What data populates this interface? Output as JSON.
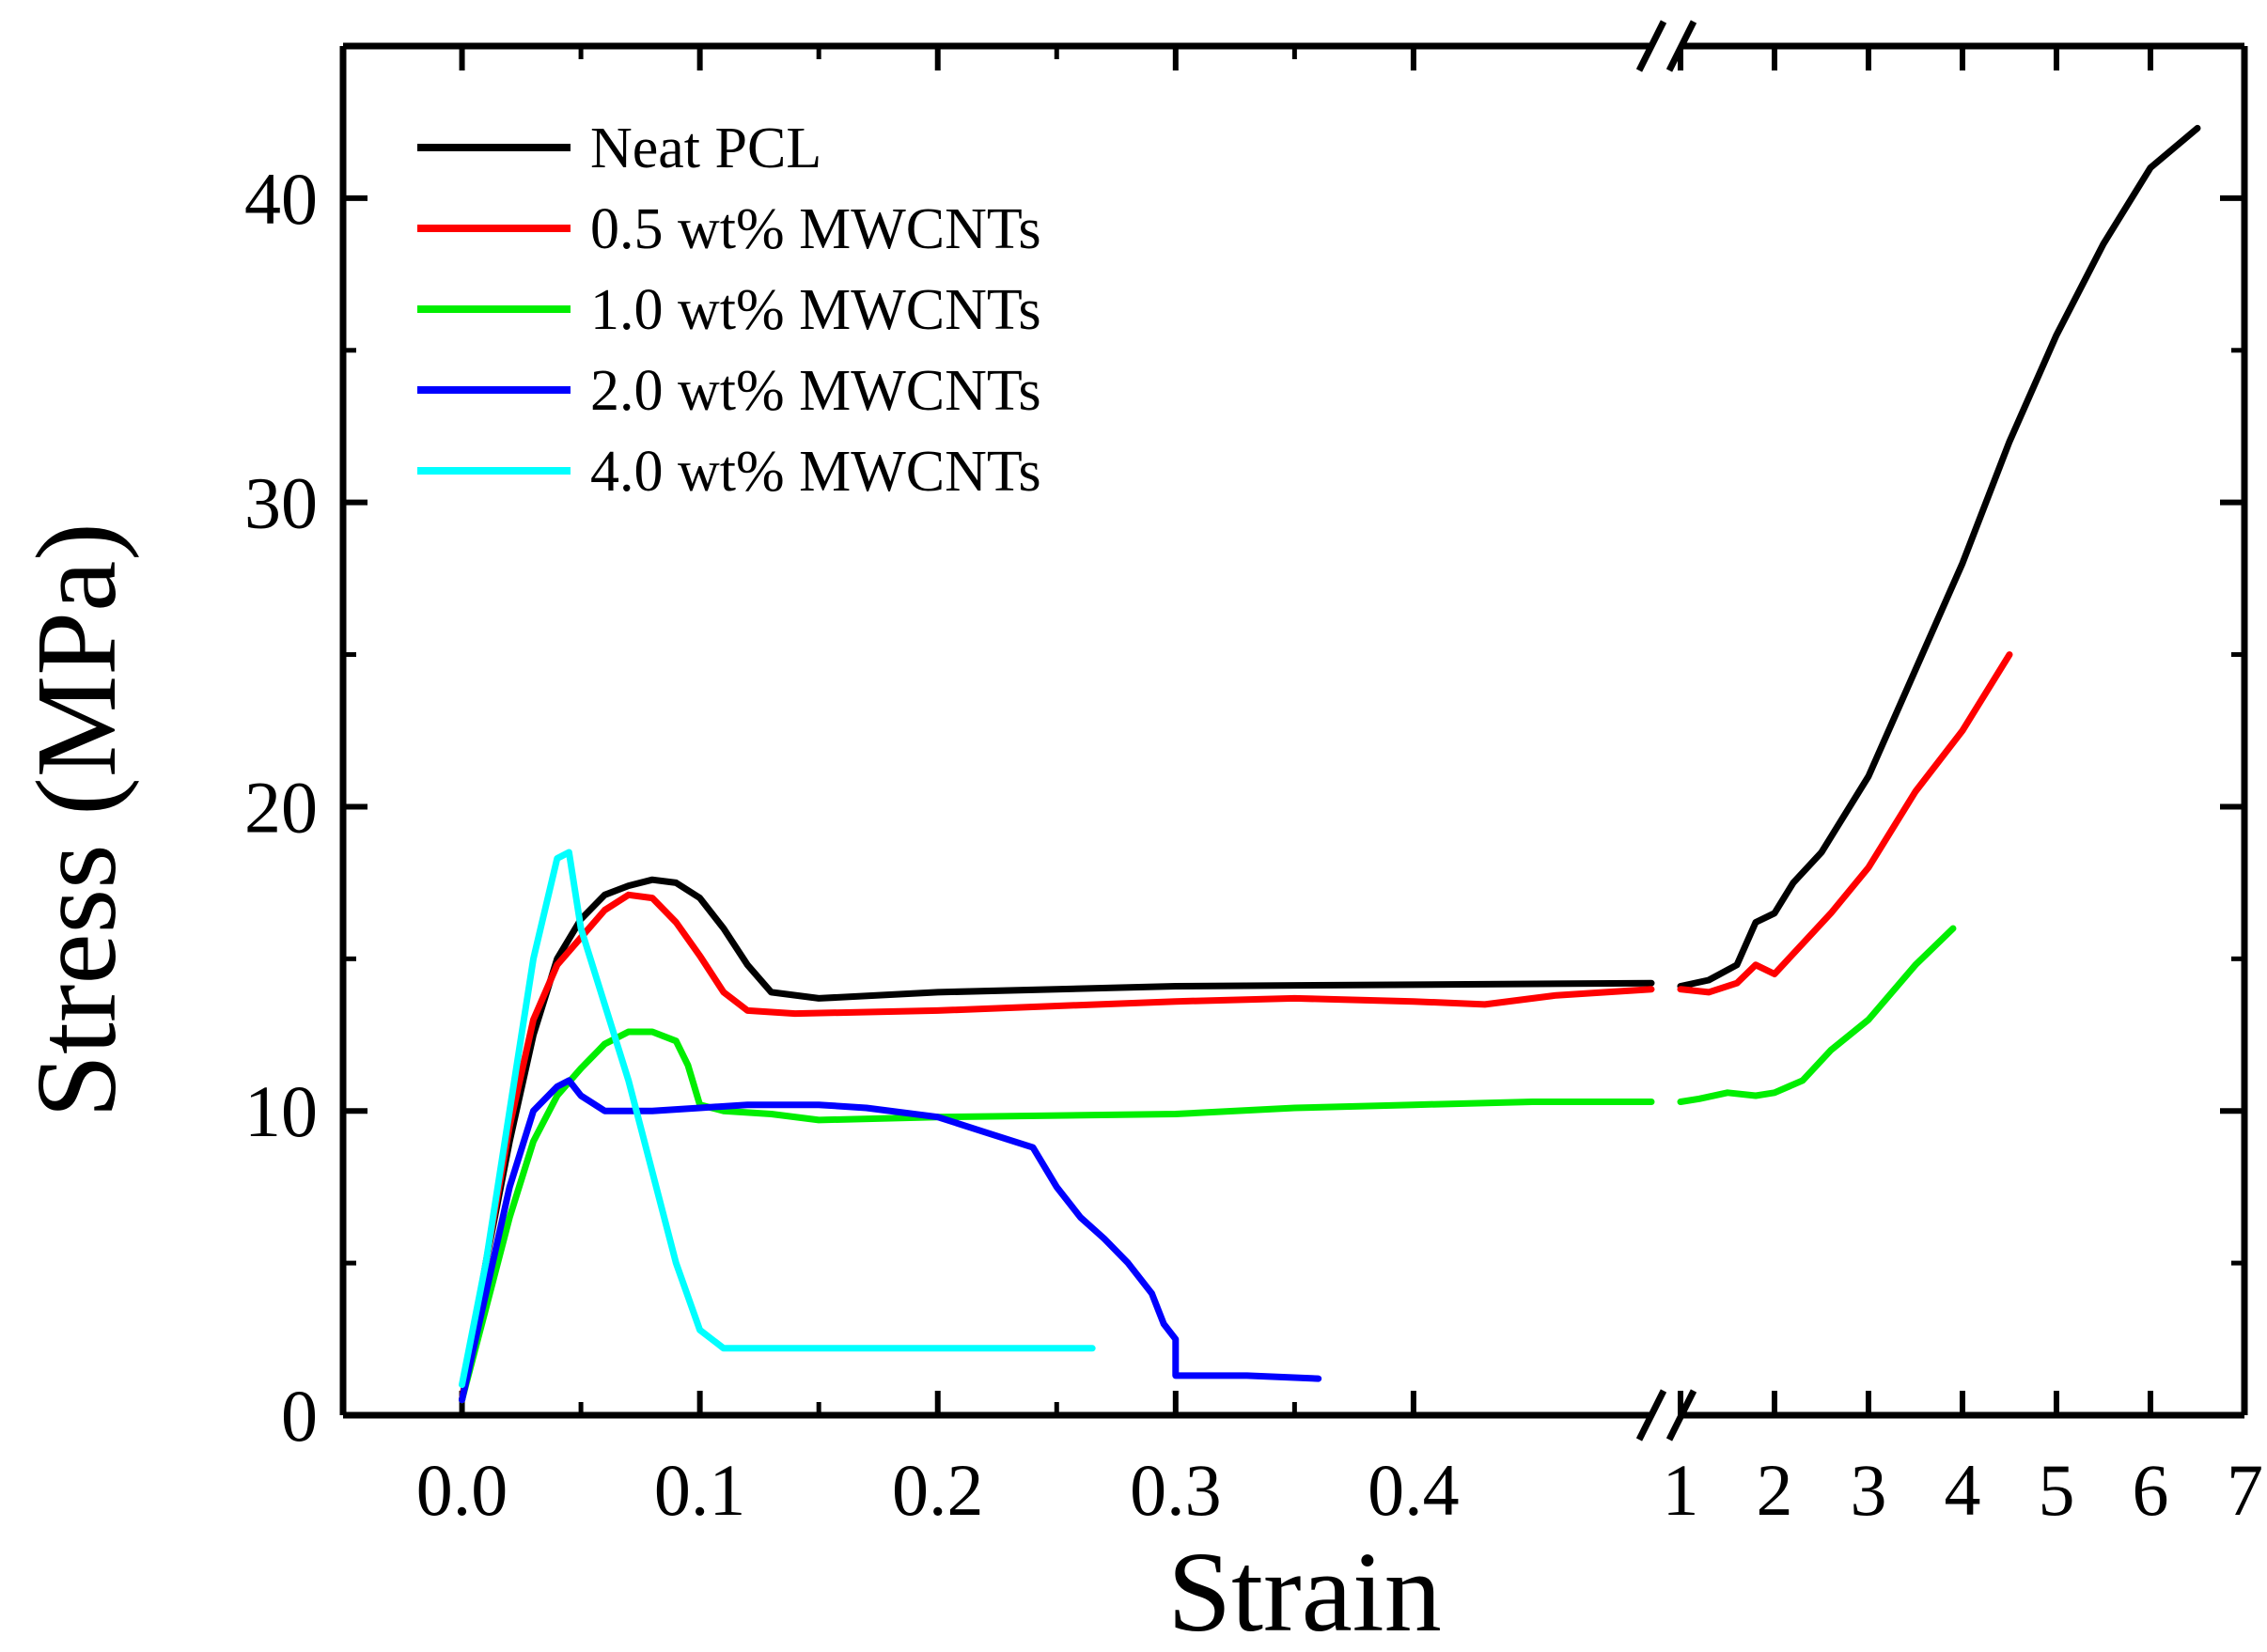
{
  "chart_data": {
    "type": "line",
    "title": "",
    "xlabel": "Strain",
    "ylabel": "Stress (MPa)",
    "axis_break": {
      "between": [
        0.5,
        1.0
      ],
      "marker": "//"
    },
    "x_segments": [
      {
        "range": [
          -0.05,
          0.5
        ],
        "ticks": [
          0.0,
          0.1,
          0.2,
          0.3,
          0.4
        ],
        "tick_labels": [
          "0.0",
          "0.1",
          "0.2",
          "0.3",
          "0.4"
        ]
      },
      {
        "range": [
          1,
          7
        ],
        "ticks": [
          1,
          2,
          3,
          4,
          5,
          6,
          7
        ],
        "tick_labels": [
          "1",
          "2",
          "3",
          "4",
          "5",
          "6",
          "7"
        ]
      }
    ],
    "ylim": [
      0,
      45
    ],
    "yticks": [
      0,
      10,
      20,
      30,
      40
    ],
    "ytick_labels": [
      "0",
      "10",
      "20",
      "30",
      "40"
    ],
    "legend_position": "top-left",
    "series": [
      {
        "name": "Neat PCL",
        "color": "#000000",
        "points": [
          [
            0,
            0.5
          ],
          [
            0.01,
            5
          ],
          [
            0.02,
            9
          ],
          [
            0.03,
            12.5
          ],
          [
            0.04,
            15
          ],
          [
            0.05,
            16.3
          ],
          [
            0.06,
            17.1
          ],
          [
            0.07,
            17.4
          ],
          [
            0.08,
            17.6
          ],
          [
            0.09,
            17.5
          ],
          [
            0.1,
            17
          ],
          [
            0.11,
            16
          ],
          [
            0.12,
            14.8
          ],
          [
            0.13,
            13.9
          ],
          [
            0.15,
            13.7
          ],
          [
            0.2,
            13.9
          ],
          [
            0.3,
            14.1
          ],
          [
            0.5,
            14.2
          ]
        ],
        "points_seg2": [
          [
            1,
            14.1
          ],
          [
            1.3,
            14.3
          ],
          [
            1.6,
            14.8
          ],
          [
            1.8,
            16.2
          ],
          [
            2,
            16.5
          ],
          [
            2.2,
            17.5
          ],
          [
            2.5,
            18.5
          ],
          [
            3,
            21
          ],
          [
            3.5,
            24.5
          ],
          [
            4,
            28
          ],
          [
            4.5,
            32
          ],
          [
            5,
            35.5
          ],
          [
            5.5,
            38.5
          ],
          [
            6,
            41
          ],
          [
            6.5,
            42.3
          ]
        ]
      },
      {
        "name": "0.5 wt% MWCNTs",
        "color": "#ff0000",
        "points": [
          [
            0,
            0.5
          ],
          [
            0.01,
            5
          ],
          [
            0.02,
            9.5
          ],
          [
            0.03,
            13
          ],
          [
            0.04,
            14.8
          ],
          [
            0.05,
            15.7
          ],
          [
            0.06,
            16.6
          ],
          [
            0.07,
            17.1
          ],
          [
            0.08,
            17
          ],
          [
            0.09,
            16.2
          ],
          [
            0.1,
            15.1
          ],
          [
            0.11,
            13.9
          ],
          [
            0.12,
            13.3
          ],
          [
            0.14,
            13.2
          ],
          [
            0.2,
            13.3
          ],
          [
            0.3,
            13.6
          ],
          [
            0.35,
            13.7
          ],
          [
            0.4,
            13.6
          ],
          [
            0.43,
            13.5
          ],
          [
            0.46,
            13.8
          ],
          [
            0.5,
            14
          ]
        ],
        "points_seg2": [
          [
            1,
            14
          ],
          [
            1.3,
            13.9
          ],
          [
            1.6,
            14.2
          ],
          [
            1.8,
            14.8
          ],
          [
            2,
            14.5
          ],
          [
            2.3,
            15.5
          ],
          [
            2.6,
            16.5
          ],
          [
            3,
            18
          ],
          [
            3.5,
            20.5
          ],
          [
            4,
            22.5
          ],
          [
            4.5,
            25
          ]
        ]
      },
      {
        "name": "1.0 wt% MWCNTs",
        "color": "#00ee00",
        "points": [
          [
            0,
            0.5
          ],
          [
            0.01,
            3.5
          ],
          [
            0.02,
            6.5
          ],
          [
            0.03,
            9
          ],
          [
            0.04,
            10.5
          ],
          [
            0.05,
            11.4
          ],
          [
            0.06,
            12.2
          ],
          [
            0.07,
            12.6
          ],
          [
            0.08,
            12.6
          ],
          [
            0.09,
            12.3
          ],
          [
            0.095,
            11.5
          ],
          [
            0.1,
            10.2
          ],
          [
            0.11,
            10
          ],
          [
            0.13,
            9.9
          ],
          [
            0.15,
            9.7
          ],
          [
            0.2,
            9.8
          ],
          [
            0.3,
            9.9
          ],
          [
            0.35,
            10.1
          ],
          [
            0.4,
            10.2
          ],
          [
            0.45,
            10.3
          ],
          [
            0.5,
            10.3
          ]
        ],
        "points_seg2": [
          [
            1,
            10.3
          ],
          [
            1.2,
            10.4
          ],
          [
            1.5,
            10.6
          ],
          [
            1.8,
            10.5
          ],
          [
            2,
            10.6
          ],
          [
            2.3,
            11
          ],
          [
            2.6,
            12
          ],
          [
            3,
            13
          ],
          [
            3.5,
            14.8
          ],
          [
            3.9,
            16
          ]
        ]
      },
      {
        "name": "2.0 wt% MWCNTs",
        "color": "#0000ff",
        "points": [
          [
            0,
            0.5
          ],
          [
            0.01,
            4
          ],
          [
            0.02,
            7.5
          ],
          [
            0.03,
            10
          ],
          [
            0.04,
            10.8
          ],
          [
            0.045,
            11
          ],
          [
            0.05,
            10.5
          ],
          [
            0.06,
            10
          ],
          [
            0.08,
            10
          ],
          [
            0.1,
            10.1
          ],
          [
            0.12,
            10.2
          ],
          [
            0.15,
            10.2
          ],
          [
            0.17,
            10.1
          ],
          [
            0.2,
            9.8
          ],
          [
            0.22,
            9.3
          ],
          [
            0.24,
            8.8
          ],
          [
            0.25,
            7.5
          ],
          [
            0.26,
            6.5
          ],
          [
            0.27,
            5.8
          ],
          [
            0.28,
            5
          ],
          [
            0.29,
            4
          ],
          [
            0.295,
            3
          ],
          [
            0.3,
            2.5
          ],
          [
            0.3,
            1.3
          ],
          [
            0.33,
            1.3
          ],
          [
            0.36,
            1.2
          ]
        ]
      },
      {
        "name": "4.0 wt% MWCNTs",
        "color": "#00ffff",
        "points": [
          [
            0,
            1
          ],
          [
            0.01,
            5
          ],
          [
            0.02,
            10
          ],
          [
            0.03,
            15
          ],
          [
            0.04,
            18.3
          ],
          [
            0.045,
            18.5
          ],
          [
            0.05,
            16
          ],
          [
            0.06,
            13.5
          ],
          [
            0.07,
            11
          ],
          [
            0.08,
            8
          ],
          [
            0.09,
            5
          ],
          [
            0.1,
            2.8
          ],
          [
            0.11,
            2.2
          ],
          [
            0.15,
            2.2
          ],
          [
            0.2,
            2.2
          ],
          [
            0.265,
            2.2
          ]
        ]
      }
    ]
  }
}
